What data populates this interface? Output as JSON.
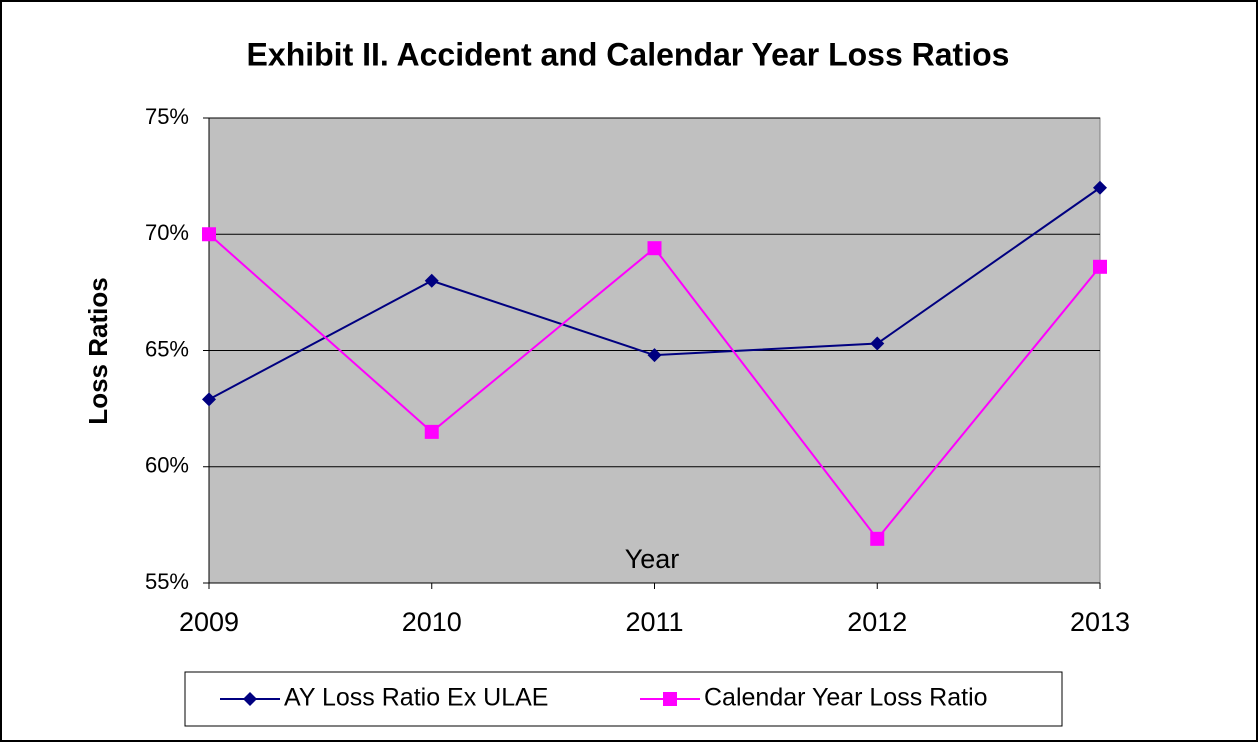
{
  "chart_data": {
    "type": "line",
    "title": "Exhibit II. Accident and Calendar Year Loss Ratios",
    "x_label": "Year",
    "y_label": "Loss Ratios",
    "categories": [
      "2009",
      "2010",
      "2011",
      "2012",
      "2013"
    ],
    "series": [
      {
        "name": "AY Loss Ratio Ex ULAE",
        "color": "#000080",
        "marker": "diamond",
        "values": [
          62.9,
          68.0,
          64.8,
          65.3,
          72.0
        ]
      },
      {
        "name": "Calendar Year Loss Ratio",
        "color": "#ff00ff",
        "marker": "square",
        "values": [
          70.0,
          61.5,
          69.4,
          56.9,
          68.6
        ]
      }
    ],
    "ylim": [
      55,
      75
    ],
    "yticks": [
      {
        "value": 55,
        "label": "55%"
      },
      {
        "value": 60,
        "label": "60%"
      },
      {
        "value": 65,
        "label": "65%"
      },
      {
        "value": 70,
        "label": "70%"
      },
      {
        "value": 75,
        "label": "75%"
      }
    ],
    "grid": true,
    "plot_background": "#c0c0c0",
    "legend": "bottom"
  }
}
